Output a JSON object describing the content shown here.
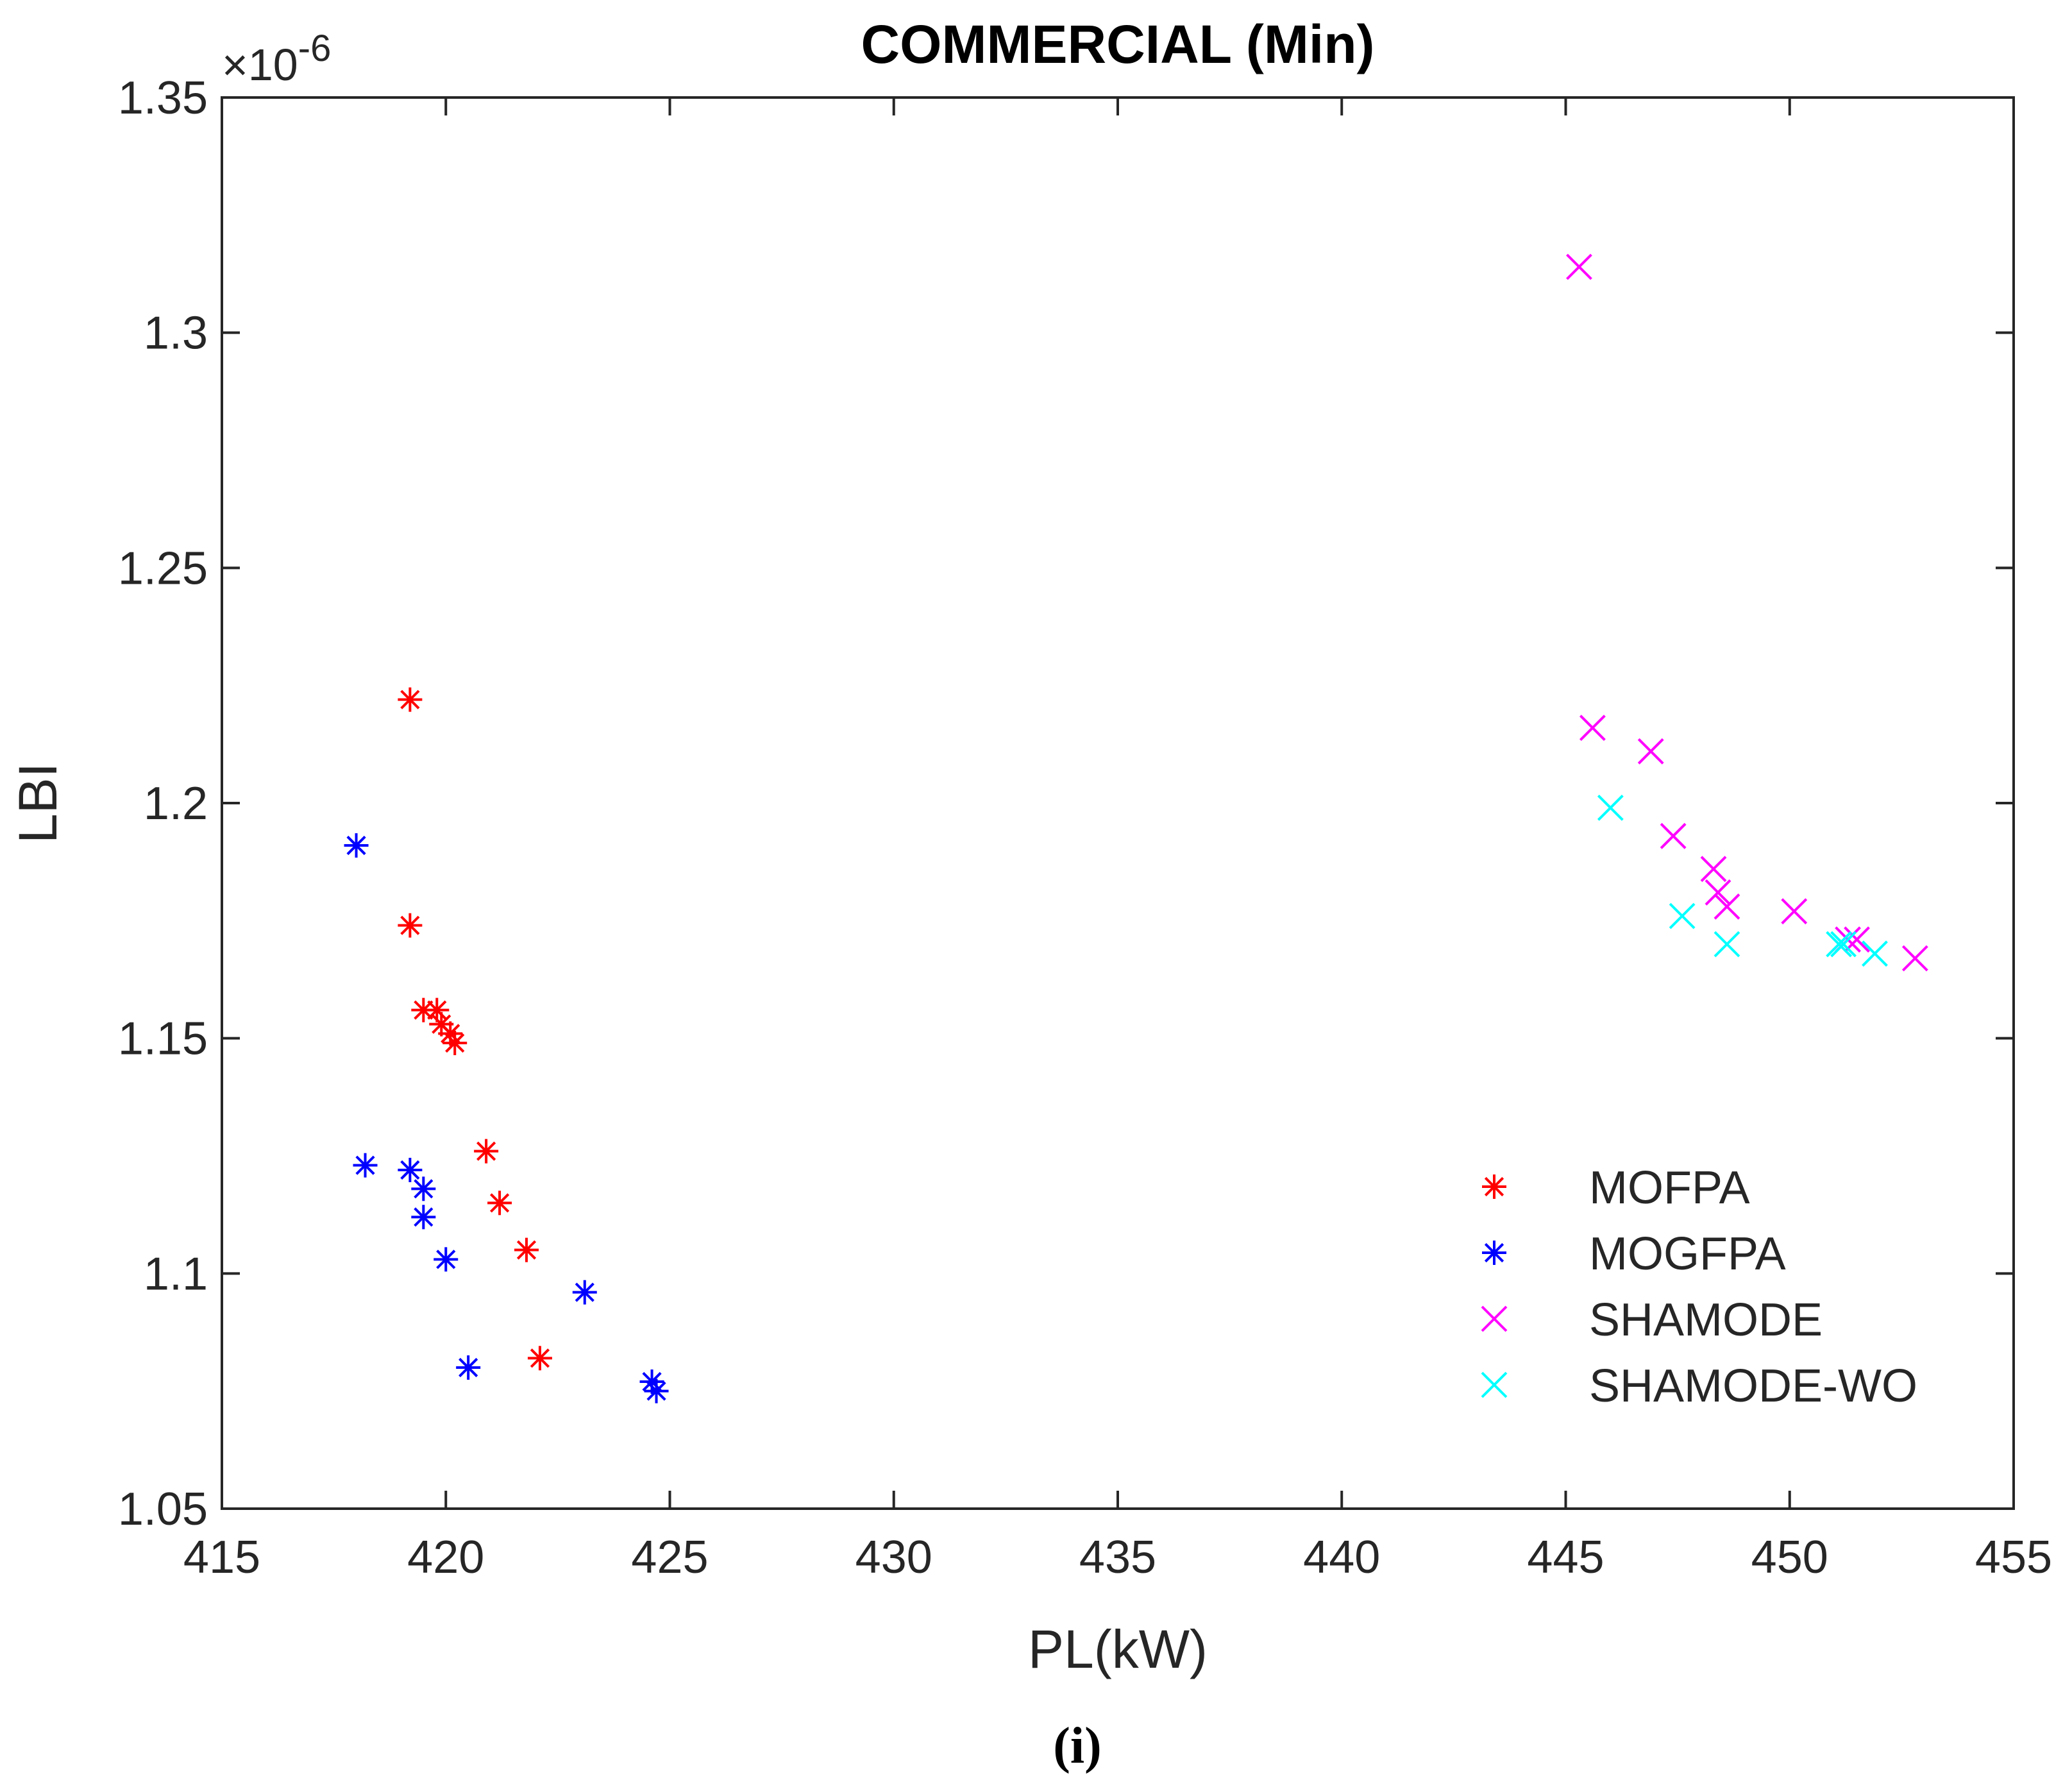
{
  "chart_data": {
    "type": "scatter",
    "title": "COMMERCIAL (Min)",
    "xlabel": "PL(kW)",
    "ylabel": "LBI",
    "y_exponent_label": "×10",
    "y_exponent_power": "-6",
    "xlim": [
      415,
      455
    ],
    "ylim": [
      1.05,
      1.35
    ],
    "xticks": [
      "415",
      "420",
      "425",
      "430",
      "435",
      "440",
      "445",
      "450",
      "455"
    ],
    "yticks": [
      "1.05",
      "1.1",
      "1.15",
      "1.2",
      "1.25",
      "1.3",
      "1.35"
    ],
    "grid": false,
    "legend_position": "lower-right",
    "caption": "(i)",
    "series": [
      {
        "name": "MOFPA",
        "color": "#ff0000",
        "marker": "asterisk",
        "points": [
          {
            "x": 419.2,
            "y": 1.222
          },
          {
            "x": 419.2,
            "y": 1.174
          },
          {
            "x": 419.5,
            "y": 1.156
          },
          {
            "x": 419.8,
            "y": 1.156
          },
          {
            "x": 419.9,
            "y": 1.153
          },
          {
            "x": 420.1,
            "y": 1.151
          },
          {
            "x": 420.2,
            "y": 1.149
          },
          {
            "x": 420.9,
            "y": 1.126
          },
          {
            "x": 421.2,
            "y": 1.115
          },
          {
            "x": 421.8,
            "y": 1.105
          },
          {
            "x": 422.1,
            "y": 1.082
          }
        ]
      },
      {
        "name": "MOGFPA",
        "color": "#0000ff",
        "marker": "asterisk",
        "points": [
          {
            "x": 418.0,
            "y": 1.191
          },
          {
            "x": 418.2,
            "y": 1.123
          },
          {
            "x": 419.2,
            "y": 1.122
          },
          {
            "x": 419.5,
            "y": 1.118
          },
          {
            "x": 419.5,
            "y": 1.112
          },
          {
            "x": 420.0,
            "y": 1.103
          },
          {
            "x": 420.5,
            "y": 1.08
          },
          {
            "x": 423.1,
            "y": 1.096
          },
          {
            "x": 424.6,
            "y": 1.077
          },
          {
            "x": 424.7,
            "y": 1.075
          }
        ]
      },
      {
        "name": "SHAMODE",
        "color": "#ff00ff",
        "marker": "x",
        "points": [
          {
            "x": 445.3,
            "y": 1.314
          },
          {
            "x": 445.6,
            "y": 1.216
          },
          {
            "x": 446.9,
            "y": 1.211
          },
          {
            "x": 447.4,
            "y": 1.193
          },
          {
            "x": 448.3,
            "y": 1.186
          },
          {
            "x": 448.4,
            "y": 1.181
          },
          {
            "x": 448.6,
            "y": 1.178
          },
          {
            "x": 450.1,
            "y": 1.177
          },
          {
            "x": 451.3,
            "y": 1.171
          },
          {
            "x": 451.5,
            "y": 1.171
          },
          {
            "x": 452.8,
            "y": 1.167
          }
        ]
      },
      {
        "name": "SHAMODE-WO",
        "color": "#00ffff",
        "marker": "x",
        "points": [
          {
            "x": 446.0,
            "y": 1.199
          },
          {
            "x": 447.6,
            "y": 1.176
          },
          {
            "x": 448.6,
            "y": 1.17
          },
          {
            "x": 451.1,
            "y": 1.17
          },
          {
            "x": 451.2,
            "y": 1.17
          },
          {
            "x": 451.9,
            "y": 1.168
          }
        ]
      }
    ]
  }
}
